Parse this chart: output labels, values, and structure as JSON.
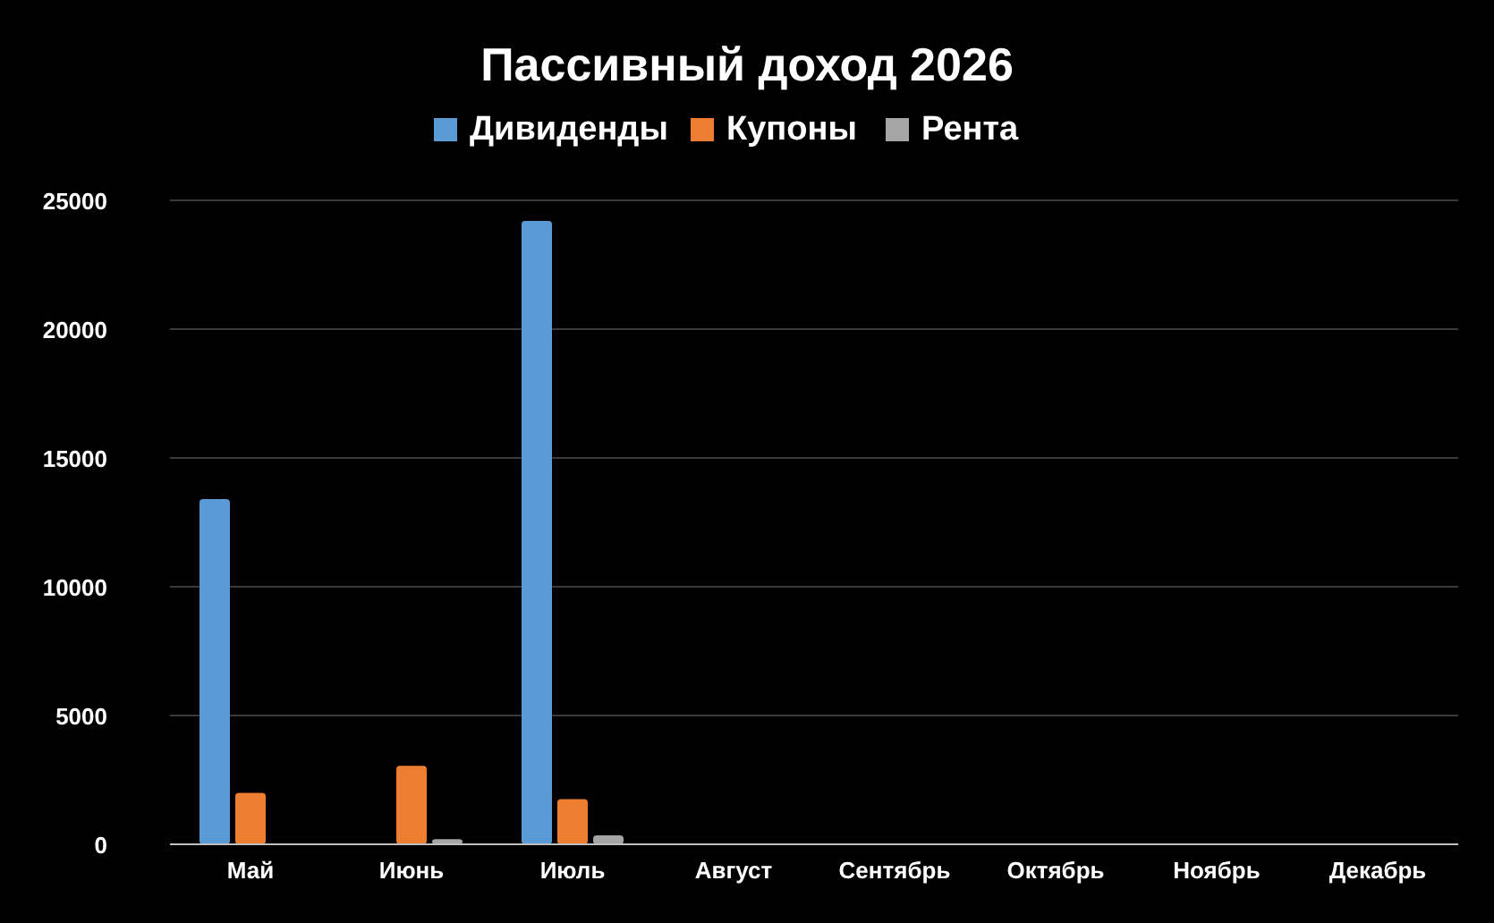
{
  "chart_data": {
    "type": "bar",
    "title": "Пассивный доход 2026",
    "categories": [
      "Май",
      "Июнь",
      "Июль",
      "Август",
      "Сентябрь",
      "Октябрь",
      "Ноябрь",
      "Декабрь"
    ],
    "series": [
      {
        "name": "Дивиденды",
        "color": "#5b9bd5",
        "values": [
          13400,
          0,
          24200,
          0,
          0,
          0,
          0,
          0
        ]
      },
      {
        "name": "Купоны",
        "color": "#ed7d31",
        "values": [
          2000,
          3050,
          1750,
          0,
          0,
          0,
          0,
          0
        ]
      },
      {
        "name": "Рента",
        "color": "#a5a5a5",
        "values": [
          30,
          200,
          350,
          0,
          0,
          0,
          0,
          0
        ]
      }
    ],
    "ylim": [
      0,
      25000
    ],
    "yticks": [
      0,
      5000,
      10000,
      15000,
      20000,
      25000
    ],
    "grid": "y",
    "legend": "top"
  }
}
